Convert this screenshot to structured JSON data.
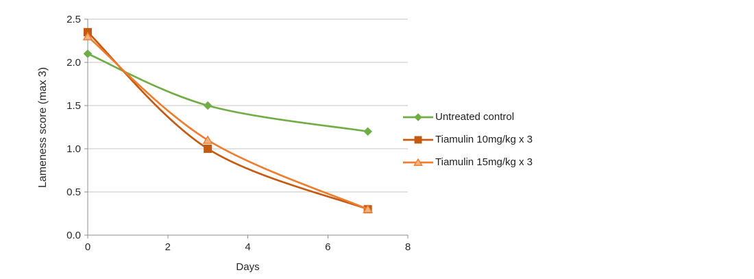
{
  "chart_data": {
    "type": "line",
    "title": "",
    "xlabel": "Days",
    "ylabel": "Lameness score (max 3)",
    "xlim": [
      0,
      8
    ],
    "ylim": [
      0,
      2.5
    ],
    "x_ticks": [
      0,
      2,
      4,
      6,
      8
    ],
    "x_tick_labels": [
      "0",
      "2",
      "4",
      "6",
      "8"
    ],
    "y_ticks": [
      0,
      0.5,
      1,
      1.5,
      2,
      2.5
    ],
    "y_tick_labels": [
      "0.0",
      "0.5",
      "1.0",
      "1.5",
      "2.0",
      "2.5"
    ],
    "grid": "horizontal",
    "smooth_lines": true,
    "legend_position": "right",
    "axis_color": "#8C8C8C",
    "grid_color": "#C3C3C3",
    "text_color": "#262626",
    "background": "#FFFFFF",
    "series": [
      {
        "name": "Untreated control",
        "marker": "diamond",
        "color": "#70AD47",
        "marker_fill": "#70AD47",
        "x": [
          0,
          3,
          7
        ],
        "values": [
          2.1,
          1.5,
          1.2
        ]
      },
      {
        "name": "Tiamulin 10mg/kg x 3",
        "marker": "square",
        "color": "#C55A11",
        "marker_fill": "#C55A11",
        "x": [
          0,
          3,
          7
        ],
        "values": [
          2.35,
          1.0,
          0.3
        ]
      },
      {
        "name": "Tiamulin 15mg/kg x 3",
        "marker": "triangle",
        "color": "#ED7D31",
        "marker_fill": "#F4B183",
        "x": [
          0,
          3,
          7
        ],
        "values": [
          2.3,
          1.1,
          0.3
        ]
      }
    ]
  }
}
